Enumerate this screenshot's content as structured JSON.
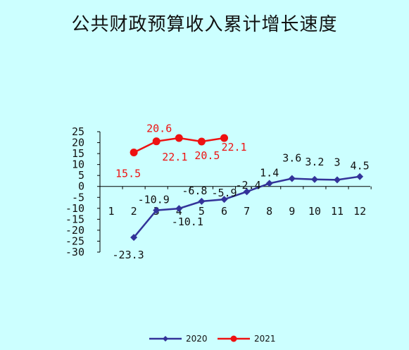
{
  "chart_data": {
    "type": "line",
    "title": "公共财政预算收入累计增长速度",
    "xlabel": "",
    "ylabel": "",
    "categories": [
      "1",
      "2",
      "3",
      "4",
      "5",
      "6",
      "7",
      "8",
      "9",
      "10",
      "11",
      "12"
    ],
    "y_ticks": [
      "25",
      "20",
      "15",
      "10",
      "5",
      "0",
      "-5",
      "-10",
      "-15",
      "-20",
      "-25",
      "-30"
    ],
    "ylim": [
      -30,
      25
    ],
    "grid": false,
    "legend_position": "bottom",
    "series": [
      {
        "name": "2020",
        "color": "#333399",
        "marker": "diamond",
        "values": [
          null,
          -23.3,
          -10.9,
          -10.1,
          -6.8,
          -5.9,
          -2.4,
          1.4,
          3.6,
          3.2,
          3.0,
          4.5
        ],
        "data_labels": [
          null,
          "-23.3",
          "-10.9",
          "-10.1",
          "-6.8",
          "-5.9",
          "-2.4",
          "1.4",
          "3.6",
          "3.2",
          "3",
          "4.5"
        ]
      },
      {
        "name": "2021",
        "color": "#ee1111",
        "marker": "circle",
        "values": [
          null,
          15.5,
          20.6,
          22.1,
          20.5,
          22.1,
          null,
          null,
          null,
          null,
          null,
          null
        ],
        "data_labels": [
          null,
          "15.5",
          "20.6",
          "22.1",
          "20.5",
          "22.1",
          null,
          null,
          null,
          null,
          null,
          null
        ]
      }
    ]
  }
}
